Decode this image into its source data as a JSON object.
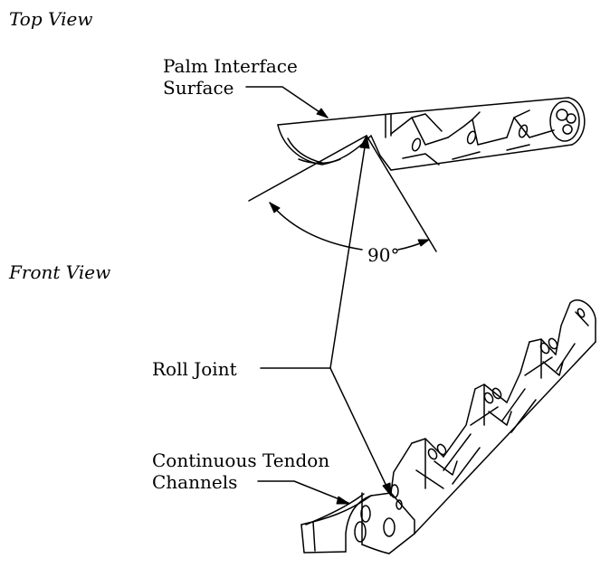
{
  "labels": {
    "top_view": "Top View",
    "front_view": "Front View",
    "palm_line1": "Palm Interface",
    "palm_line2": "Surface",
    "angle": "90°",
    "roll_joint": "Roll Joint",
    "tendon_line1": "Continuous Tendon",
    "tendon_line2": "Channels"
  },
  "colors": {
    "line": "#000000",
    "background": "#ffffff"
  }
}
